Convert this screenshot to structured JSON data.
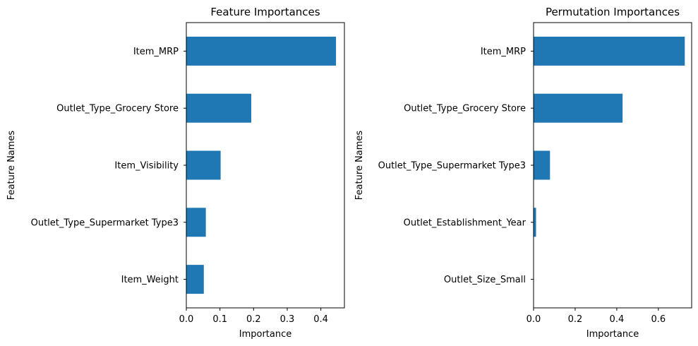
{
  "chart_data": [
    {
      "type": "bar",
      "orientation": "horizontal",
      "title": "Feature Importances",
      "xlabel": "Importance",
      "ylabel": "Feature Names",
      "categories": [
        "Item_MRP",
        "Outlet_Type_Grocery Store",
        "Item_Visibility",
        "Outlet_Type_Supermarket Type3",
        "Item_Weight"
      ],
      "values": [
        0.445,
        0.193,
        0.102,
        0.058,
        0.052
      ],
      "xlim": [
        0,
        0.47
      ],
      "xticks": [
        0.0,
        0.1,
        0.2,
        0.3,
        0.4
      ],
      "xtick_labels": [
        "0.0",
        "0.1",
        "0.2",
        "0.3",
        "0.4"
      ],
      "grid": false,
      "color": "#1f77b4"
    },
    {
      "type": "bar",
      "orientation": "horizontal",
      "title": "Permutation Importances",
      "xlabel": "Importance",
      "ylabel": "Feature Names",
      "categories": [
        "Item_MRP",
        "Outlet_Type_Grocery Store",
        "Outlet_Type_Supermarket Type3",
        "Outlet_Establishment_Year",
        "Outlet_Size_Small"
      ],
      "values": [
        0.727,
        0.428,
        0.079,
        0.012,
        0.0
      ],
      "xlim": [
        0,
        0.76
      ],
      "xticks": [
        0.0,
        0.2,
        0.4,
        0.6
      ],
      "xtick_labels": [
        "0.0",
        "0.2",
        "0.4",
        "0.6"
      ],
      "grid": false,
      "color": "#1f77b4"
    }
  ]
}
